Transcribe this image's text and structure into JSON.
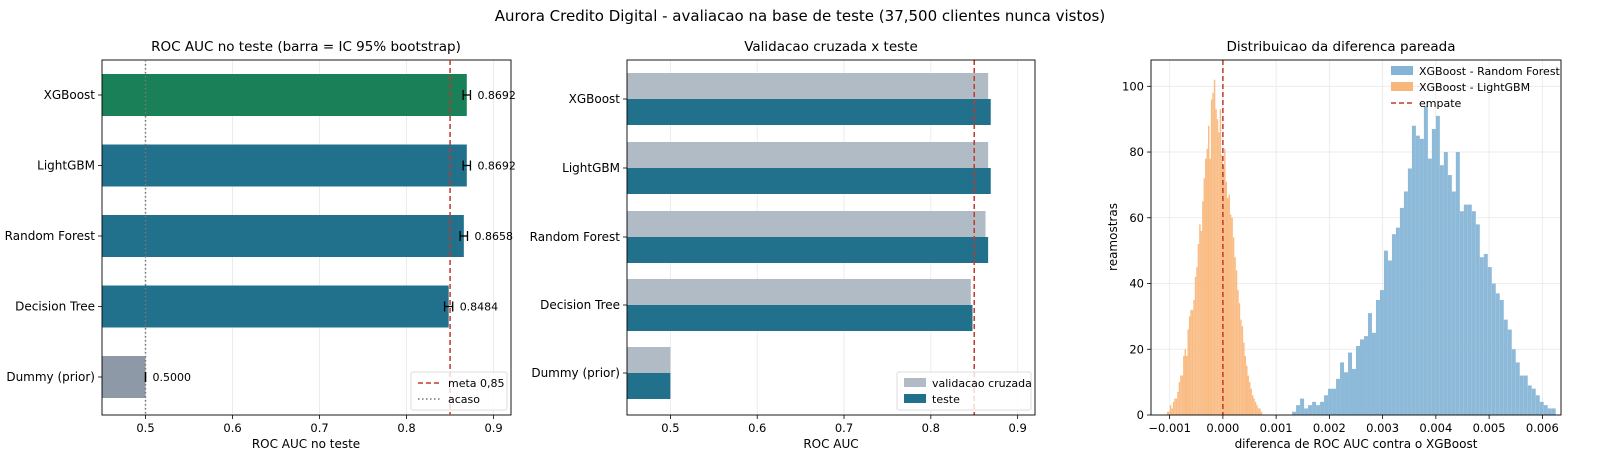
{
  "suptitle": "Aurora Credito Digital - avaliacao na base de teste (37,500 clientes nunca vistos)",
  "colors": {
    "bar_main": "#21708c",
    "bar_best": "#1a8058",
    "bar_dummy": "#8d99a6",
    "bar_cv": "#b0bbc6",
    "meta_line": "#c0392b",
    "chance_line": "#777777",
    "hist_rf": "#84b4d6",
    "hist_lgbm": "#f8b67a",
    "grid": "#e8e8e8"
  },
  "chart_data": [
    {
      "type": "bar",
      "orientation": "horizontal",
      "title": "ROC AUC no teste (barra = IC 95% bootstrap)",
      "xlabel": "ROC AUC no teste",
      "ylabel": "",
      "xlim": [
        0.45,
        0.92
      ],
      "xticks": [
        0.5,
        0.6,
        0.7,
        0.8,
        0.9
      ],
      "categories": [
        "XGBoost",
        "LightGBM",
        "Random Forest",
        "Decision Tree",
        "Dummy (prior)"
      ],
      "values": [
        0.8692,
        0.8692,
        0.8658,
        0.8484,
        0.5
      ],
      "value_labels": [
        "0.8692",
        "0.8692",
        "0.8658",
        "0.8484",
        "0.5000"
      ],
      "ci": [
        [
          0.865,
          0.8734
        ],
        [
          0.865,
          0.8734
        ],
        [
          0.8615,
          0.87
        ],
        [
          0.8437,
          0.853
        ],
        [
          0.5,
          0.5
        ]
      ],
      "highlight": "XGBoost",
      "reference_lines": [
        {
          "name": "meta 0,85",
          "x": 0.85,
          "style": "dashed"
        },
        {
          "name": "acaso",
          "x": 0.5,
          "style": "dotted"
        }
      ],
      "legend": "lower-right",
      "grid": true
    },
    {
      "type": "bar",
      "orientation": "horizontal",
      "title": "Validacao cruzada x teste",
      "xlabel": "ROC AUC",
      "ylabel": "",
      "xlim": [
        0.45,
        0.92
      ],
      "xticks": [
        0.5,
        0.6,
        0.7,
        0.8,
        0.9
      ],
      "categories": [
        "XGBoost",
        "LightGBM",
        "Random Forest",
        "Decision Tree",
        "Dummy (prior)"
      ],
      "series": [
        {
          "name": "validacao cruzada",
          "values": [
            0.866,
            0.866,
            0.863,
            0.846,
            0.5
          ]
        },
        {
          "name": "teste",
          "values": [
            0.869,
            0.869,
            0.866,
            0.848,
            0.5
          ]
        }
      ],
      "reference_line": {
        "x": 0.85,
        "style": "dashed"
      },
      "legend": "lower-right",
      "grid": true
    },
    {
      "type": "histogram",
      "title": "Distribuicao da diferenca pareada",
      "xlabel": "diferenca de ROC AUC contra o XGBoost",
      "ylabel": "reamostras",
      "xlim": [
        -0.00135,
        0.00635
      ],
      "ylim": [
        0,
        108
      ],
      "xticks": [
        -0.001,
        0.0,
        0.001,
        0.002,
        0.003,
        0.004,
        0.005,
        0.006
      ],
      "xtick_labels": [
        "−0.001",
        "0.000",
        "0.001",
        "0.002",
        "0.003",
        "0.004",
        "0.005",
        "0.006"
      ],
      "yticks": [
        0,
        20,
        40,
        60,
        80,
        100
      ],
      "series": [
        {
          "name": "XGBoost - Random Forest",
          "bin_start": 0.0013,
          "bin_width": 7.5e-05,
          "counts": [
            1,
            3,
            5,
            2,
            3,
            4,
            3,
            4,
            6,
            8,
            8,
            11,
            16,
            13,
            19,
            14,
            21,
            23,
            24,
            31,
            25,
            35,
            38,
            50,
            47,
            55,
            57,
            63,
            68,
            75,
            88,
            85,
            84,
            94,
            78,
            87,
            91,
            76,
            80,
            73,
            68,
            80,
            62,
            64,
            64,
            62,
            58,
            48,
            49,
            45,
            40,
            37,
            35,
            29,
            26,
            20,
            16,
            12,
            12,
            9,
            8,
            6,
            4,
            3,
            2,
            2
          ]
        },
        {
          "name": "XGBoost - LightGBM",
          "bin_start": -0.00105,
          "bin_width": 2.75e-05,
          "counts": [
            1,
            1,
            3,
            2,
            4,
            5,
            5,
            7,
            10,
            12,
            12,
            18,
            20,
            18,
            26,
            30,
            32,
            32,
            35,
            42,
            45,
            52,
            58,
            56,
            65,
            72,
            78,
            81,
            88,
            78,
            96,
            98,
            102,
            93,
            90,
            86,
            93,
            79,
            76,
            81,
            71,
            66,
            67,
            61,
            60,
            54,
            48,
            44,
            38,
            34,
            29,
            27,
            22,
            18,
            15,
            12,
            10,
            8,
            6,
            5,
            4,
            3,
            2,
            2,
            1
          ]
        }
      ],
      "reference_line": {
        "name": "empate",
        "x": 0.0,
        "style": "dashed"
      },
      "legend": "top-right",
      "grid": true
    }
  ]
}
